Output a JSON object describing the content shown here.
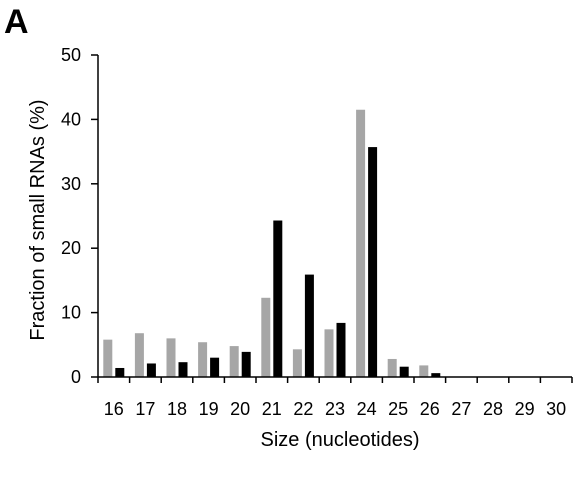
{
  "panel_label": "A",
  "chart_data": {
    "type": "bar",
    "xlabel": "Size (nucleotides)",
    "ylabel": "Fraction of small RNAs (%)",
    "ylim": [
      0,
      50
    ],
    "yticks": [
      0,
      10,
      20,
      30,
      40,
      50
    ],
    "grid": false,
    "legend": "none",
    "categories": [
      "16",
      "17",
      "18",
      "19",
      "20",
      "21",
      "22",
      "23",
      "24",
      "25",
      "26",
      "27",
      "28",
      "29",
      "30"
    ],
    "series": [
      {
        "color": "#a6a6a6",
        "values": [
          5.8,
          6.8,
          6.0,
          5.4,
          4.8,
          12.3,
          4.3,
          7.4,
          41.5,
          2.8,
          1.8,
          0,
          0,
          0,
          0
        ]
      },
      {
        "color": "#000000",
        "values": [
          1.4,
          2.1,
          2.3,
          3.0,
          3.9,
          24.3,
          15.9,
          8.4,
          35.7,
          1.6,
          0.6,
          0,
          0,
          0,
          0
        ]
      }
    ]
  }
}
